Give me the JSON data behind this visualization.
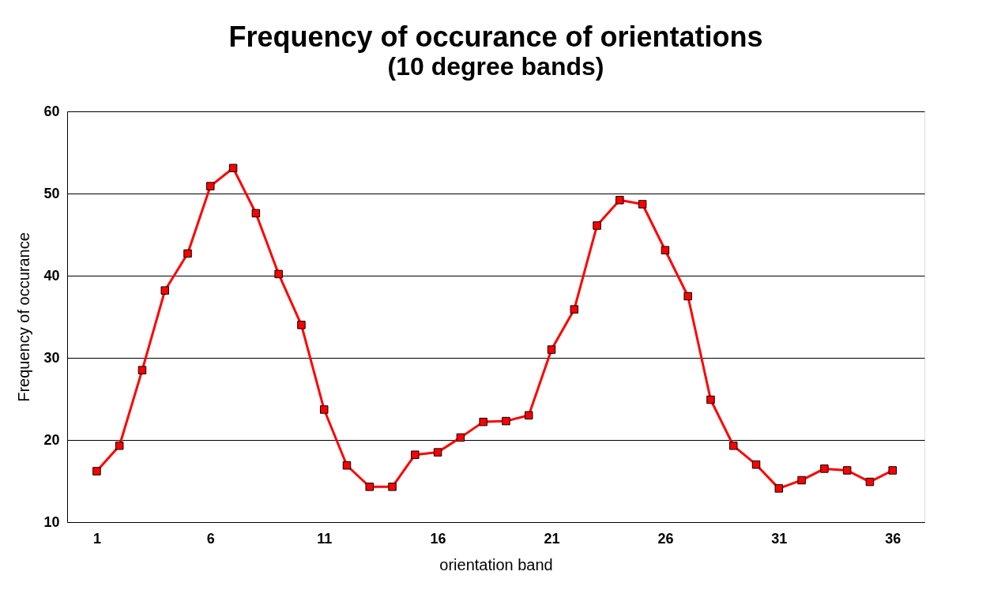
{
  "chart_data": {
    "type": "line",
    "title": "Frequency of occurance of orientations",
    "subtitle": "(10 degree bands)",
    "xlabel": "orientation band",
    "ylabel": "Frequency of occurance",
    "x": [
      1,
      2,
      3,
      4,
      5,
      6,
      7,
      8,
      9,
      10,
      11,
      12,
      13,
      14,
      15,
      16,
      17,
      18,
      19,
      20,
      21,
      22,
      23,
      24,
      25,
      26,
      27,
      28,
      29,
      30,
      31,
      32,
      33,
      34,
      35,
      36
    ],
    "series": [
      {
        "color": "#ff0000",
        "values": [
          16.2,
          19.3,
          28.5,
          38.2,
          42.7,
          50.9,
          53.1,
          47.6,
          40.2,
          34.0,
          23.7,
          16.9,
          14.3,
          14.3,
          18.2,
          18.5,
          20.3,
          22.2,
          22.3,
          23.0,
          31.0,
          35.9,
          46.1,
          49.2,
          48.7,
          43.1,
          37.5,
          24.9,
          19.3,
          17.0,
          14.1,
          15.1,
          16.5,
          16.3,
          14.9,
          16.3
        ]
      }
    ],
    "xlim": [
      -0.3,
      37.4
    ],
    "xticks": [
      1,
      6,
      11,
      16,
      21,
      26,
      31,
      36
    ],
    "ylim": [
      10,
      60
    ],
    "yticks": [
      10,
      20,
      30,
      40,
      50,
      60
    ],
    "grid": "y",
    "marker": "square",
    "line_style": "solid"
  }
}
